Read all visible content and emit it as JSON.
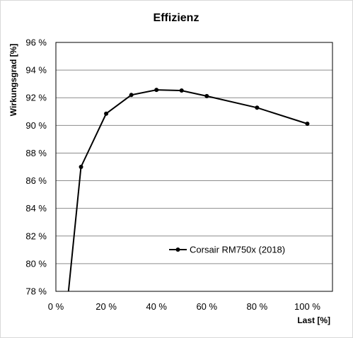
{
  "chart_data": {
    "type": "line",
    "title": "Effizienz",
    "xlabel": "Last [%]",
    "ylabel": "Wirkungsgrad [%]",
    "xlim": [
      0,
      110
    ],
    "ylim": [
      78,
      96
    ],
    "x_ticks": [
      0,
      20,
      40,
      60,
      80,
      100
    ],
    "x_tick_labels": [
      "0 %",
      "20 %",
      "40 %",
      "60 %",
      "80 %",
      "100 %"
    ],
    "y_ticks": [
      78,
      80,
      82,
      84,
      86,
      88,
      90,
      92,
      94,
      96
    ],
    "y_tick_labels": [
      "78 %",
      "80 %",
      "82 %",
      "84 %",
      "86 %",
      "88 %",
      "90 %",
      "92 %",
      "94 %",
      "96 %"
    ],
    "grid": "horizontal",
    "legend_position": "lower-right",
    "series": [
      {
        "name": "Corsair RM750x (2018)",
        "color": "#000000",
        "x": [
          5,
          10,
          20,
          30,
          40,
          50,
          60,
          80,
          100
        ],
        "y": [
          78.0,
          87.0,
          90.85,
          92.2,
          92.57,
          92.52,
          92.12,
          91.28,
          90.12
        ]
      }
    ]
  }
}
